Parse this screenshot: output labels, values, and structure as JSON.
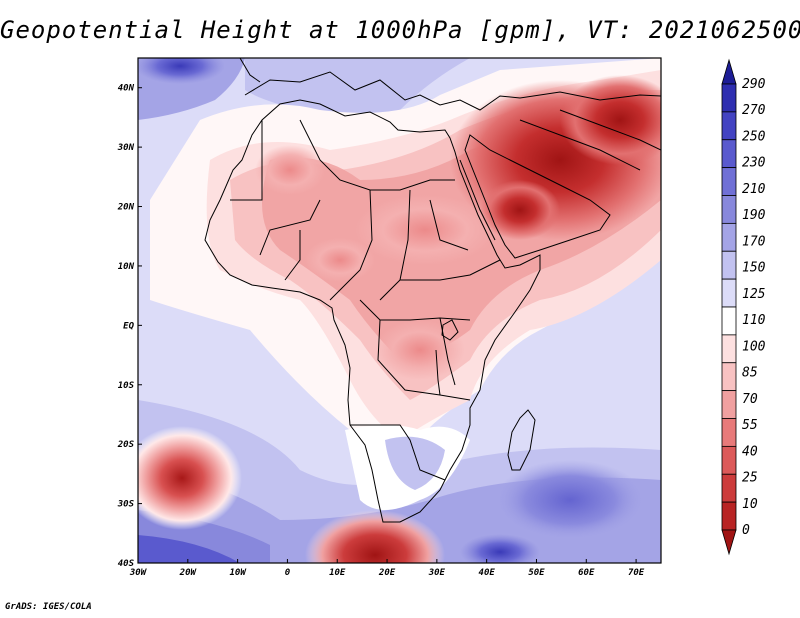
{
  "title": "Geopotential Height at 1000hPa [gpm], VT: 2021062500",
  "credit": "GrADS: IGES/COLA",
  "map": {
    "projection": "lat-lon",
    "lon_range": [
      -30,
      75
    ],
    "lat_range": [
      -40,
      45
    ],
    "lon_ticks": [
      {
        "value": -30,
        "label": "30W"
      },
      {
        "value": -20,
        "label": "20W"
      },
      {
        "value": -10,
        "label": "10W"
      },
      {
        "value": 0,
        "label": "0"
      },
      {
        "value": 10,
        "label": "10E"
      },
      {
        "value": 20,
        "label": "20E"
      },
      {
        "value": 30,
        "label": "30E"
      },
      {
        "value": 40,
        "label": "40E"
      },
      {
        "value": 50,
        "label": "50E"
      },
      {
        "value": 60,
        "label": "60E"
      },
      {
        "value": 70,
        "label": "70E"
      }
    ],
    "lat_ticks": [
      {
        "value": 40,
        "label": "40N"
      },
      {
        "value": 30,
        "label": "30N"
      },
      {
        "value": 20,
        "label": "20N"
      },
      {
        "value": 10,
        "label": "10N"
      },
      {
        "value": 0,
        "label": "EQ"
      },
      {
        "value": -10,
        "label": "10S"
      },
      {
        "value": -20,
        "label": "20S"
      },
      {
        "value": -30,
        "label": "30S"
      },
      {
        "value": -40,
        "label": "40S"
      }
    ],
    "highs_lows": [
      {
        "kind": "low-center",
        "lon": -21,
        "lat": -26,
        "value": 5
      },
      {
        "kind": "low-center",
        "lon": 17,
        "lat": -38,
        "value": 10
      },
      {
        "kind": "low-center",
        "lon": 50,
        "lat": 20,
        "value": 10
      },
      {
        "kind": "low-center",
        "lon": 63,
        "lat": 31,
        "value": 15
      },
      {
        "kind": "high-center",
        "lon": 45,
        "lat": -38,
        "value": 280
      },
      {
        "kind": "high-center",
        "lon": -22,
        "lat": 44,
        "value": 260
      },
      {
        "kind": "high-center",
        "lon": 58,
        "lat": -28,
        "value": 215
      }
    ]
  },
  "colorbar": {
    "levels": [
      "290",
      "270",
      "250",
      "230",
      "210",
      "190",
      "170",
      "150",
      "125",
      "110",
      "100",
      "85",
      "70",
      "55",
      "40",
      "25",
      "10",
      "0"
    ],
    "colors": [
      "#1d1d96",
      "#2e2eb0",
      "#4343c2",
      "#5a5ace",
      "#7070d6",
      "#8888dc",
      "#a4a4e6",
      "#c2c2f0",
      "#dcdcf8",
      "#ffffff",
      "#fde0e0",
      "#f8c2c2",
      "#f0a0a0",
      "#e87a7a",
      "#dc5a5a",
      "#cc3c3c",
      "#b82424",
      "#a01414"
    ]
  }
}
